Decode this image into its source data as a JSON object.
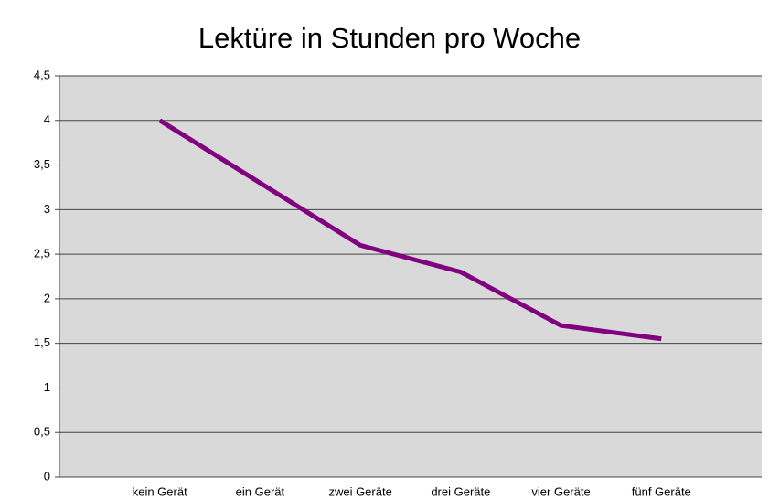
{
  "chart_data": {
    "type": "line",
    "title": "Lektüre in Stunden pro Woche",
    "categories": [
      "kein Gerät",
      "ein Gerät",
      "zwei Geräte",
      "drei Geräte",
      "vier Geräte",
      "fünf Geräte"
    ],
    "values": [
      4,
      3.3,
      2.6,
      2.3,
      1.7,
      1.55
    ],
    "color": "#800080",
    "ylim": [
      0,
      4.5
    ],
    "yticks": [
      0,
      {
        "value": 0.5,
        "label": "0,5"
      },
      1,
      {
        "value": 1.5,
        "label": "1,5"
      },
      2,
      {
        "value": 2.5,
        "label": "2,5"
      },
      3,
      {
        "value": 3.5,
        "label": "3,5"
      },
      4,
      {
        "value": 4.5,
        "label": "4,5"
      }
    ],
    "grid": true
  }
}
